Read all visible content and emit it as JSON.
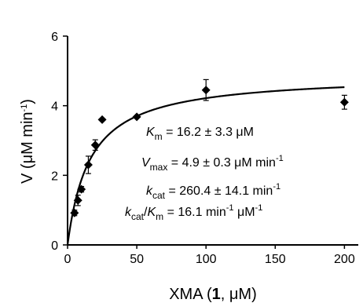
{
  "chart_data": {
    "type": "scatter",
    "x_label": {
      "prefix": "XMA (",
      "bold": "1",
      "suffix": ", μM)"
    },
    "y_label": {
      "prefix": "V (μM min",
      "sup": "-1",
      "suffix": ")"
    },
    "xlim": [
      0,
      210
    ],
    "ylim": [
      0,
      6
    ],
    "x_ticks": [
      0,
      50,
      100,
      150,
      200
    ],
    "y_ticks": [
      0,
      2,
      4,
      6
    ],
    "points": [
      {
        "x": 5,
        "y": 0.92,
        "err": 0.08
      },
      {
        "x": 7.5,
        "y": 1.28,
        "err": 0.15
      },
      {
        "x": 10,
        "y": 1.6,
        "err": 0.08
      },
      {
        "x": 15,
        "y": 2.3,
        "err": 0.25
      },
      {
        "x": 20,
        "y": 2.87,
        "err": 0.15
      },
      {
        "x": 25,
        "y": 3.6,
        "err": 0.0
      },
      {
        "x": 50,
        "y": 3.68,
        "err": 0.0
      },
      {
        "x": 100,
        "y": 4.45,
        "err": 0.3
      },
      {
        "x": 200,
        "y": 4.1,
        "err": 0.2
      }
    ],
    "fit": {
      "model": "michaelis-menten",
      "Vmax": 4.9,
      "Km": 16.2,
      "x_range": [
        0,
        200
      ]
    },
    "annotations": [
      {
        "id": "km",
        "parts": [
          {
            "t": "K",
            "style": "italic"
          },
          {
            "t": "m",
            "style": "sub"
          },
          {
            "t": " = 16.2 ± 3.3 μM"
          }
        ]
      },
      {
        "id": "vmax",
        "parts": [
          {
            "t": "V",
            "style": "italic"
          },
          {
            "t": "max",
            "style": "sub"
          },
          {
            "t": " = 4.9 ± 0.3 μM min"
          },
          {
            "t": "-1",
            "style": "sup"
          }
        ]
      },
      {
        "id": "kcat",
        "parts": [
          {
            "t": "k",
            "style": "italic"
          },
          {
            "t": "cat",
            "style": "sub"
          },
          {
            "t": " = 260.4 ± 14.1 min"
          },
          {
            "t": "-1",
            "style": "sup"
          }
        ]
      },
      {
        "id": "kcatkm",
        "parts": [
          {
            "t": "k",
            "style": "italic"
          },
          {
            "t": "cat",
            "style": "sub"
          },
          {
            "t": "/"
          },
          {
            "t": "K",
            "style": "italic"
          },
          {
            "t": "m",
            "style": "sub"
          },
          {
            "t": " = 16.1 min"
          },
          {
            "t": "-1",
            "style": "sup"
          },
          {
            "t": " μM"
          },
          {
            "t": "-1",
            "style": "sup"
          }
        ]
      }
    ]
  }
}
